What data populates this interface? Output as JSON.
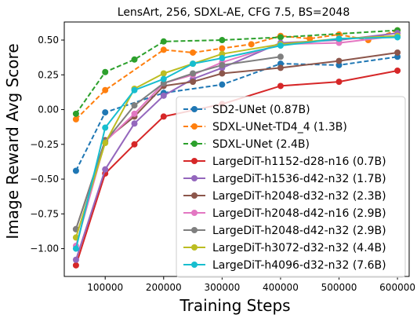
{
  "chart_data": {
    "type": "line",
    "title": "LensArt, 256, SDXL-AE, CFG 7.5, BS=2048",
    "xlabel": "Training Steps",
    "ylabel": "Image Reward Avg Score",
    "xlim": [
      30000,
      620000
    ],
    "ylim": [
      -1.2,
      0.63
    ],
    "x_ticks": [
      100000,
      200000,
      300000,
      400000,
      500000,
      600000
    ],
    "x_tick_labels": [
      "100000",
      "200000",
      "300000",
      "400000",
      "500000",
      "600000"
    ],
    "y_ticks": [
      -1.0,
      -0.75,
      -0.5,
      -0.25,
      0.0,
      0.25,
      0.5
    ],
    "y_tick_labels": [
      "−1.00",
      "−0.75",
      "−0.50",
      "−0.25",
      "0.00",
      "0.25",
      "0.50"
    ],
    "legend_position": "bottom-right",
    "grid": false,
    "series": [
      {
        "name": "SD2-UNet (0.87B)",
        "color": "#1f77b4",
        "dash": true,
        "x": [
          50000,
          100000,
          200000,
          300000,
          400000,
          500000,
          600000
        ],
        "y": [
          -0.44,
          -0.02,
          0.12,
          0.18,
          0.33,
          0.32,
          0.38
        ]
      },
      {
        "name": "SDXL-UNet-TD4_4 (1.3B)",
        "color": "#ff7f0e",
        "dash": true,
        "x": [
          50000,
          100000,
          200000,
          250000,
          300000,
          350000,
          400000,
          450000,
          500000,
          550000,
          600000
        ],
        "y": [
          -0.07,
          0.14,
          0.43,
          0.41,
          0.44,
          0.47,
          0.53,
          0.51,
          0.54,
          0.5,
          0.57
        ]
      },
      {
        "name": "SDXL-UNet (2.4B)",
        "color": "#2ca02c",
        "dash": true,
        "x": [
          50000,
          100000,
          150000,
          200000,
          300000,
          400000,
          600000
        ],
        "y": [
          -0.03,
          0.27,
          0.36,
          0.49,
          0.5,
          0.52,
          0.57
        ]
      },
      {
        "name": "LargeDiT-h1152-d28-n16 (0.7B)",
        "color": "#d62728",
        "dash": false,
        "x": [
          50000,
          100000,
          150000,
          200000,
          300000,
          400000,
          500000,
          600000
        ],
        "y": [
          -1.12,
          -0.46,
          -0.25,
          -0.05,
          0.04,
          0.17,
          0.2,
          0.28
        ]
      },
      {
        "name": "LargeDiT-h1536-d42-n32 (1.7B)",
        "color": "#9467bd",
        "dash": false,
        "x": [
          50000,
          100000,
          150000,
          200000,
          250000,
          300000,
          400000,
          500000,
          600000
        ],
        "y": [
          -1.08,
          -0.43,
          -0.1,
          0.1,
          0.22,
          0.3,
          0.48,
          0.5,
          0.55
        ]
      },
      {
        "name": "LargeDiT-h2048-d32-n32 (2.3B)",
        "color": "#8c564b",
        "dash": false,
        "x": [
          50000,
          100000,
          150000,
          200000,
          250000,
          300000,
          400000,
          500000,
          600000
        ],
        "y": [
          -0.86,
          -0.22,
          -0.05,
          0.17,
          0.2,
          0.26,
          0.3,
          0.35,
          0.41
        ]
      },
      {
        "name": "LargeDiT-h2048-d42-n16 (2.9B)",
        "color": "#e377c2",
        "dash": false,
        "x": [
          50000,
          100000,
          150000,
          200000,
          250000,
          300000,
          400000,
          500000,
          600000
        ],
        "y": [
          -0.98,
          -0.23,
          -0.03,
          0.19,
          0.25,
          0.34,
          0.47,
          0.48,
          0.53
        ]
      },
      {
        "name": "LargeDiT-h2048-d42-n32 (2.9B)",
        "color": "#7f7f7f",
        "dash": false,
        "x": [
          50000,
          100000,
          150000,
          200000,
          250000,
          300000,
          400000
        ],
        "y": [
          -0.86,
          -0.23,
          0.03,
          0.19,
          0.26,
          0.32,
          0.38
        ]
      },
      {
        "name": "LargeDiT-h3072-d32-n32 (4.4B)",
        "color": "#bcbd22",
        "dash": false,
        "x": [
          50000,
          100000,
          150000,
          200000,
          250000,
          300000,
          400000,
          500000,
          600000
        ],
        "y": [
          -0.92,
          -0.24,
          0.15,
          0.26,
          0.33,
          0.4,
          0.47,
          0.51,
          0.53
        ]
      },
      {
        "name": "LargeDiT-h4096-d32-n32 (7.6B)",
        "color": "#17becf",
        "dash": false,
        "x": [
          50000,
          100000,
          150000,
          200000,
          250000,
          300000,
          400000,
          500000,
          600000
        ],
        "y": [
          -1.0,
          -0.13,
          0.14,
          0.22,
          0.33,
          0.37,
          0.46,
          0.51,
          0.52
        ]
      }
    ]
  }
}
